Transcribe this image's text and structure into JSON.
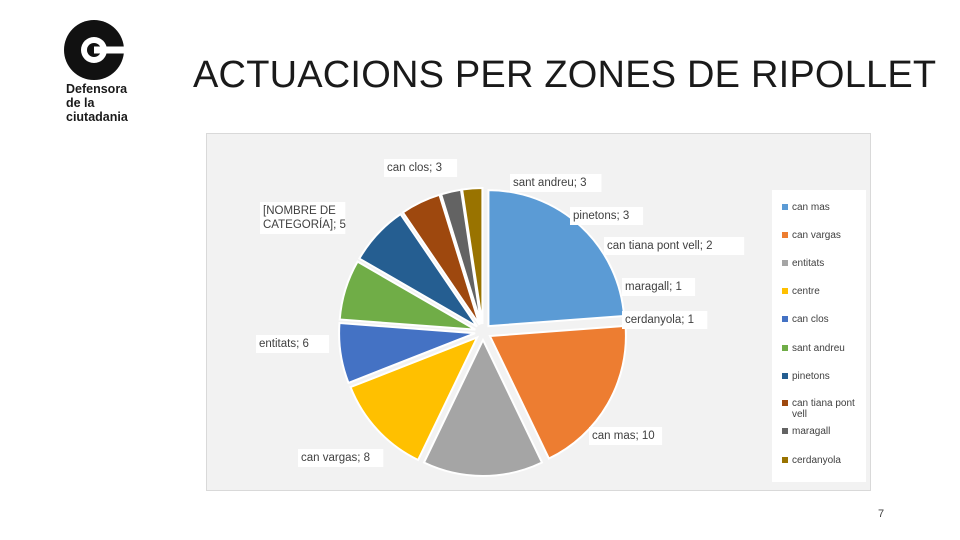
{
  "slide": {
    "title": "ACTUACIONS PER ZONES DE RIPOLLET",
    "page_number": "7"
  },
  "logo": {
    "lines": [
      "Defensora",
      "de la",
      "ciutadania"
    ]
  },
  "chart_data": {
    "type": "pie",
    "exploded": true,
    "legend_position": "right",
    "categories": [
      "can mas",
      "can vargas",
      "entitats",
      "centre",
      "can clos",
      "sant andreu",
      "pinetons",
      "can tiana pont vell",
      "maragall",
      "cerdanyola"
    ],
    "values": [
      10,
      8,
      6,
      5,
      3,
      3,
      3,
      2,
      1,
      1
    ],
    "data_labels": [
      "can mas; 10",
      "can vargas; 8",
      "entitats; 6",
      "[NOMBRE DE CATEGORÍA]; 5",
      "can clos; 3",
      "sant andreu; 3",
      "pinetons; 3",
      "can tiana pont vell; 2",
      "maragall; 1",
      "cerdanyola; 1"
    ],
    "colors": [
      "#5b9bd5",
      "#ed7d31",
      "#a5a5a5",
      "#ffc000",
      "#4472c4",
      "#70ad47",
      "#255e91",
      "#9e480e",
      "#636363",
      "#997300"
    ]
  }
}
